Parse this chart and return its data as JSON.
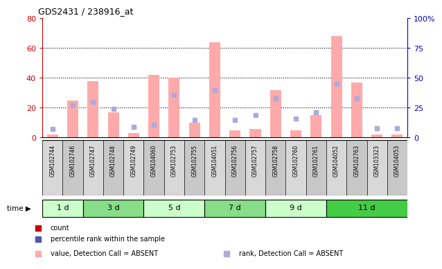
{
  "title": "GDS2431 / 238916_at",
  "samples": [
    "GSM102744",
    "GSM102746",
    "GSM102747",
    "GSM102748",
    "GSM102749",
    "GSM104060",
    "GSM102753",
    "GSM102755",
    "GSM104051",
    "GSM102756",
    "GSM102757",
    "GSM102758",
    "GSM102760",
    "GSM102761",
    "GSM104052",
    "GSM102763",
    "GSM103323",
    "GSM104053"
  ],
  "bar_values_all": [
    2,
    25,
    38,
    17,
    3,
    42,
    40,
    10,
    64,
    5,
    6,
    32,
    5,
    15,
    68,
    37,
    2,
    2
  ],
  "rank_dots_all": [
    7,
    27,
    30,
    24,
    9,
    11,
    36,
    15,
    40,
    15,
    19,
    33,
    16,
    21,
    45,
    33,
    8,
    8
  ],
  "time_groups": [
    {
      "label": "1 d",
      "start": 0,
      "end": 2,
      "color": "#ccffcc"
    },
    {
      "label": "3 d",
      "start": 2,
      "end": 5,
      "color": "#88dd88"
    },
    {
      "label": "5 d",
      "start": 5,
      "end": 8,
      "color": "#ccffcc"
    },
    {
      "label": "7 d",
      "start": 8,
      "end": 11,
      "color": "#88dd88"
    },
    {
      "label": "9 d",
      "start": 11,
      "end": 14,
      "color": "#ccffcc"
    },
    {
      "label": "11 d",
      "start": 14,
      "end": 18,
      "color": "#44cc44"
    }
  ],
  "ylim_left": [
    0,
    80
  ],
  "ylim_right": [
    0,
    100
  ],
  "yticks_left": [
    0,
    20,
    40,
    60,
    80
  ],
  "yticks_right": [
    0,
    25,
    50,
    75,
    100
  ],
  "ytick_labels_right": [
    "0",
    "25",
    "50",
    "75",
    "100%"
  ],
  "bar_color_absent": "#ffaaaa",
  "dot_color_absent": "#aaaadd",
  "left_tick_color": "#cc0000",
  "right_tick_color": "#0000cc",
  "grid_color": "black",
  "bg_color": "white",
  "col_even": "#d8d8d8",
  "col_odd": "#c8c8c8",
  "legend_items": [
    {
      "color": "#cc0000",
      "label": "count"
    },
    {
      "color": "#5555aa",
      "label": "percentile rank within the sample"
    },
    {
      "color": "#ffaaaa",
      "label": "value, Detection Call = ABSENT"
    },
    {
      "color": "#aaaadd",
      "label": "rank, Detection Call = ABSENT"
    }
  ]
}
